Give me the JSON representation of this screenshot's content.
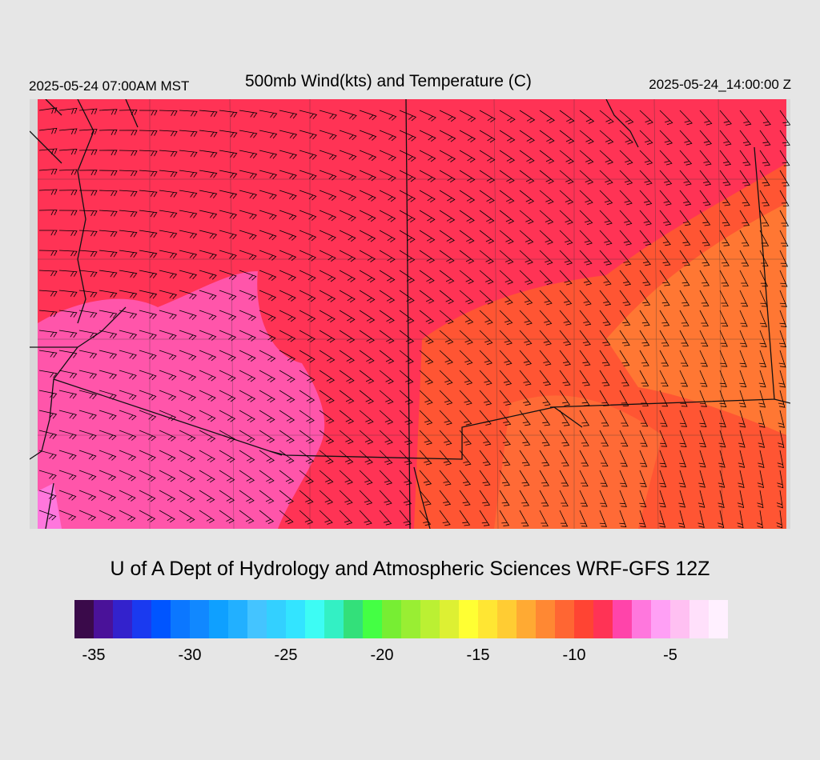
{
  "header": {
    "local_time": "2025-05-24 07:00AM MST",
    "title": "500mb Wind(kts) and Temperature (C)",
    "valid_time": "2025-05-24_14:00:00 Z"
  },
  "credit": "U of A Dept of Hydrology and Atmospheric Sciences WRF-GFS 12Z",
  "colorbar": {
    "colors": [
      "#3a0a4a",
      "#4a1299",
      "#3322cc",
      "#1a3af0",
      "#0055ff",
      "#0b77ff",
      "#1188ff",
      "#0fa0ff",
      "#22b0ff",
      "#44c4ff",
      "#33d0ff",
      "#33e4ff",
      "#3dfcf4",
      "#33f0c4",
      "#33e07a",
      "#44ff44",
      "#77ee33",
      "#99ee33",
      "#bbf033",
      "#ddf033",
      "#ffff33",
      "#ffe633",
      "#ffcc33",
      "#ffaa33",
      "#ff8833",
      "#ff6633",
      "#ff4433",
      "#ff3355",
      "#ff44aa",
      "#ff77dd",
      "#ffa0f5",
      "#ffc0f2",
      "#ffe0fb",
      "#fff0ff"
    ],
    "ticks": [
      "-35",
      "-30",
      "-25",
      "-20",
      "-15",
      "-10",
      "-5"
    ]
  },
  "map_colors": {
    "pink": "#ff55aa",
    "magenta": "#ff3366",
    "red": "#ff3344",
    "orange_red": "#ff5533",
    "orange": "#ff7733",
    "light_orange": "#ff8840"
  }
}
